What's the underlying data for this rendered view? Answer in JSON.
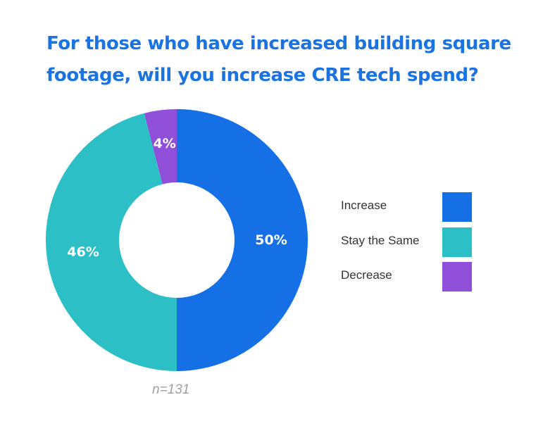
{
  "chart_data": {
    "type": "pie",
    "variant": "donut",
    "title": "For those who have increased building square footage, will you increase CRE tech spend?",
    "categories": [
      "Increase",
      "Stay the Same",
      "Decrease"
    ],
    "values": [
      50,
      46,
      4
    ],
    "labels": [
      "50%",
      "46%",
      "4%"
    ],
    "colors": [
      "#1570e6",
      "#2cbfc6",
      "#8f4fd9"
    ],
    "legend_position": "right",
    "footnote": "n=131"
  }
}
